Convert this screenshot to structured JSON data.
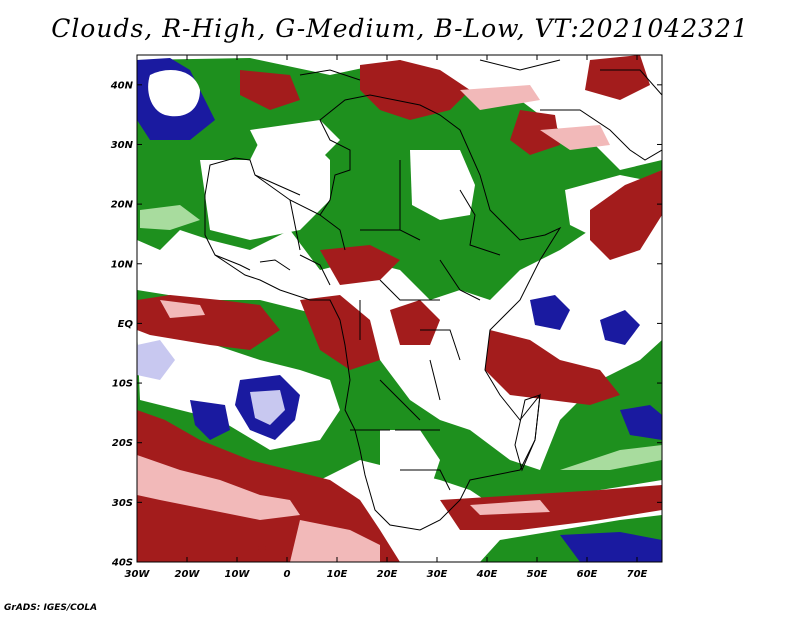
{
  "title": "Clouds, R-High, G-Medium, B-Low, VT:2021042321",
  "credit": "GrADS: IGES/COLA",
  "legend_colors": {
    "high": "#a31c1c",
    "high_light": "#f2b9b9",
    "medium": "#1e901e",
    "medium_light": "#a8dc9e",
    "low": "#1a1aa0",
    "low_light": "#c8c8f0"
  },
  "map": {
    "lon_range": [
      -30,
      75
    ],
    "lat_range": [
      -40,
      45
    ],
    "lat_ticks": [
      {
        "value": 40,
        "label": "40N"
      },
      {
        "value": 30,
        "label": "30N"
      },
      {
        "value": 20,
        "label": "20N"
      },
      {
        "value": 10,
        "label": "10N"
      },
      {
        "value": 0,
        "label": "EQ"
      },
      {
        "value": -10,
        "label": "10S"
      },
      {
        "value": -20,
        "label": "20S"
      },
      {
        "value": -30,
        "label": "30S"
      },
      {
        "value": -40,
        "label": "40S"
      }
    ],
    "lon_ticks": [
      {
        "value": -30,
        "label": "30W"
      },
      {
        "value": -20,
        "label": "20W"
      },
      {
        "value": -10,
        "label": "10W"
      },
      {
        "value": 0,
        "label": "0"
      },
      {
        "value": 10,
        "label": "10E"
      },
      {
        "value": 20,
        "label": "20E"
      },
      {
        "value": 30,
        "label": "30E"
      },
      {
        "value": 40,
        "label": "40E"
      },
      {
        "value": 50,
        "label": "50E"
      },
      {
        "value": 60,
        "label": "60E"
      },
      {
        "value": 70,
        "label": "70E"
      }
    ]
  }
}
